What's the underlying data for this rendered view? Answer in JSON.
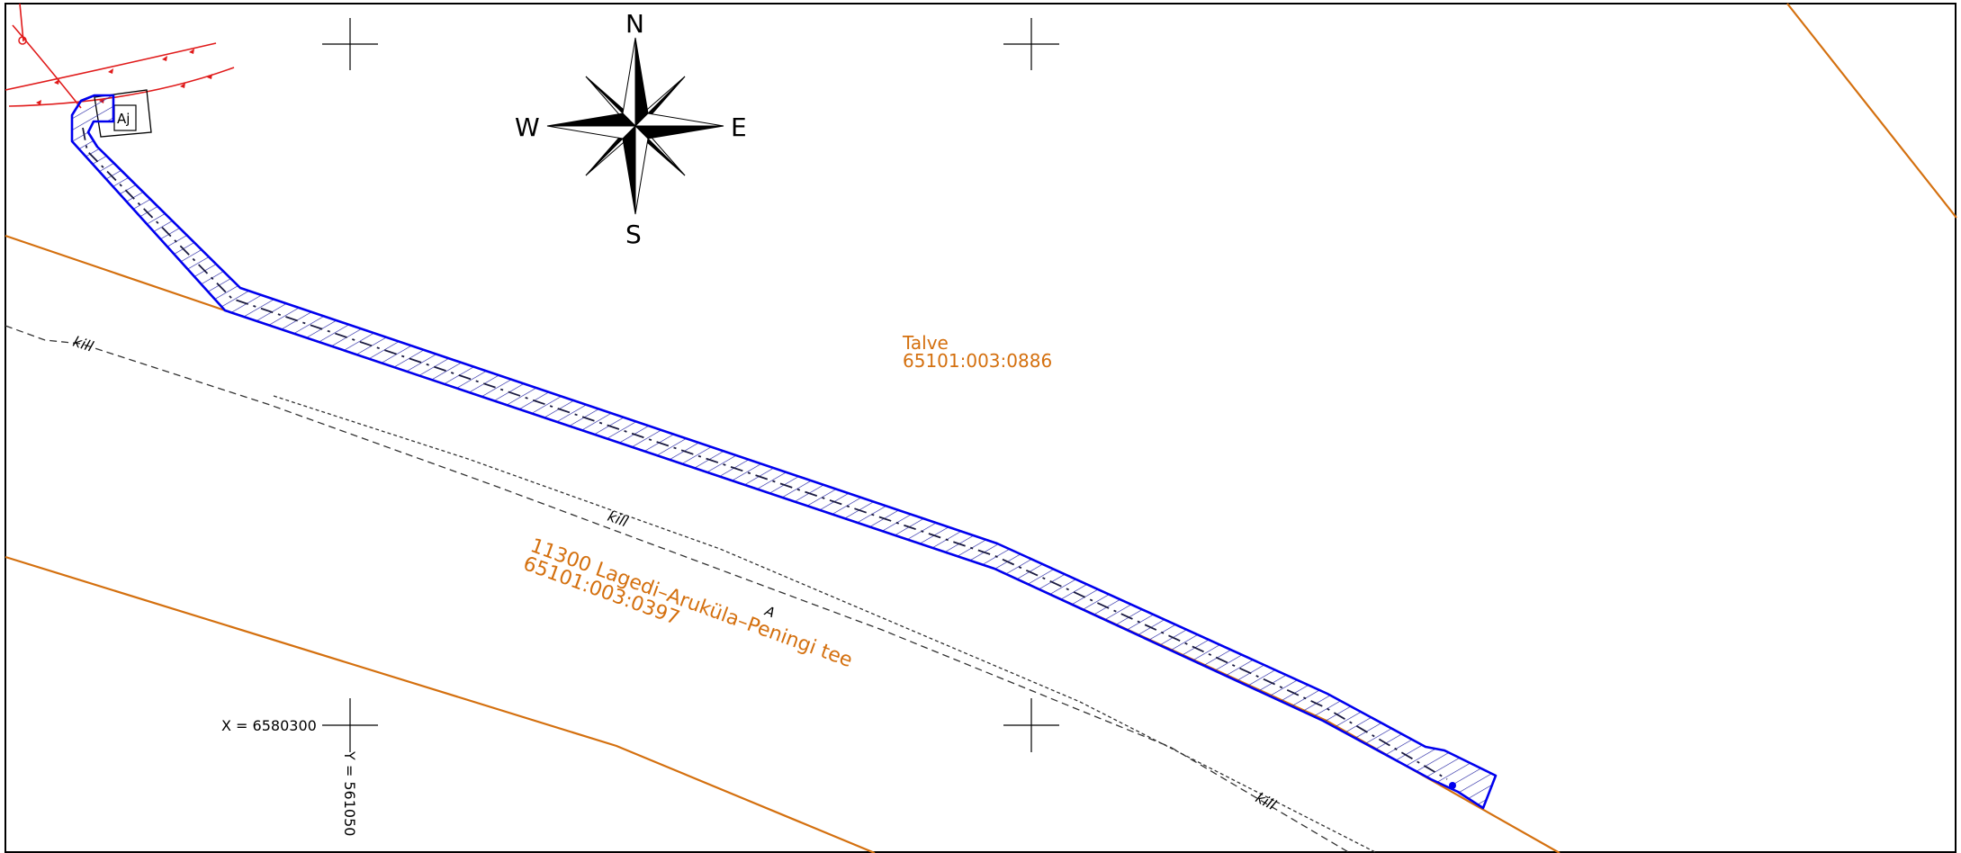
{
  "compass": {
    "n": "N",
    "e": "E",
    "s": "S",
    "w": "W"
  },
  "parcels": {
    "talve": {
      "name": "Talve",
      "code": "65101:003:0886"
    },
    "road": {
      "name": "11300 Lagedi–Aruküla–Peningi tee",
      "code": "65101:003:0397"
    }
  },
  "ditch_label": "kill",
  "road_letter": "A",
  "building_label": "Aj",
  "coords": {
    "x_label": "X = 6580300",
    "y_label": "Y = 561050"
  },
  "colors": {
    "boundary": "#d4700f",
    "route": "#0000ee",
    "hatch": "#1a1aa0",
    "utility": "#e01a1a",
    "ink": "#000000",
    "dashed": "#333333"
  }
}
